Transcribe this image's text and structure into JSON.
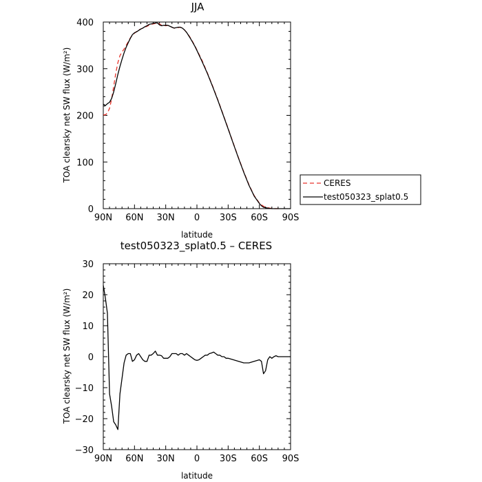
{
  "chart_data": [
    {
      "type": "line",
      "title": "JJA",
      "xlabel": "latitude",
      "ylabel": "TOA clearsky net SW flux (W/m²)",
      "xlim": [
        90,
        -90
      ],
      "ylim": [
        0,
        400
      ],
      "xticks": [
        90,
        60,
        30,
        0,
        -30,
        -60,
        -90
      ],
      "xtick_labels": [
        "90N",
        "60N",
        "30N",
        "0",
        "30S",
        "60S",
        "90S"
      ],
      "yticks": [
        0,
        100,
        200,
        300,
        400
      ],
      "ytick_labels": [
        "0",
        "100",
        "200",
        "300",
        "400"
      ],
      "legend": {
        "placement": "right"
      },
      "series": [
        {
          "name": "CERES",
          "color": "#e8332a",
          "dash": "dashed",
          "x": [
            90,
            88,
            86,
            84,
            82,
            80,
            78,
            76,
            74,
            72,
            70,
            68,
            66,
            64,
            62,
            60,
            58,
            56,
            54,
            52,
            50,
            48,
            46,
            44,
            42,
            40,
            38,
            36,
            34,
            32,
            30,
            28,
            26,
            24,
            22,
            20,
            18,
            16,
            14,
            12,
            10,
            8,
            6,
            4,
            2,
            0,
            -5,
            -10,
            -15,
            -20,
            -25,
            -30,
            -35,
            -40,
            -45,
            -50,
            -55,
            -60,
            -62,
            -64,
            -66,
            -68,
            -70,
            -72,
            -74,
            -76,
            -78,
            -80
          ],
          "y": [
            201,
            201,
            205,
            215,
            235,
            262,
            290,
            313,
            328,
            336,
            342,
            350,
            358,
            366,
            372,
            376,
            380,
            383,
            385,
            387,
            389,
            391,
            393,
            395,
            396,
            397,
            398,
            396,
            393,
            392,
            392,
            393,
            391,
            389,
            387,
            387,
            388,
            389,
            387,
            383,
            378,
            372,
            365,
            357,
            349,
            340,
            317,
            291,
            263,
            234,
            203,
            172,
            140,
            109,
            79,
            51,
            28,
            12,
            8,
            5,
            3,
            2,
            1,
            0.5,
            0,
            0,
            0,
            0
          ]
        },
        {
          "name": "test050323_splat0.5",
          "color": "#000000",
          "dash": "solid",
          "x": [
            90,
            88,
            86,
            84,
            82,
            80,
            78,
            76,
            74,
            72,
            70,
            68,
            66,
            64,
            62,
            60,
            58,
            56,
            54,
            52,
            50,
            48,
            46,
            44,
            42,
            40,
            38,
            36,
            34,
            32,
            30,
            28,
            26,
            24,
            22,
            20,
            18,
            16,
            14,
            12,
            10,
            8,
            6,
            4,
            2,
            0,
            -5,
            -10,
            -15,
            -20,
            -25,
            -30,
            -35,
            -40,
            -45,
            -50,
            -55,
            -60,
            -62,
            -64,
            -66,
            -68,
            -70,
            -72,
            -74,
            -76,
            -78,
            -80,
            -90
          ],
          "y": [
            224,
            221,
            225,
            228,
            236,
            250,
            268,
            288,
            305,
            320,
            334,
            346,
            356,
            365,
            373,
            377,
            379,
            382,
            385,
            387,
            390,
            392,
            395,
            396,
            397,
            398,
            398,
            394,
            392,
            393,
            393,
            393,
            391,
            389,
            387,
            388,
            389,
            389,
            387,
            383,
            378,
            371,
            364,
            356,
            348,
            339,
            315,
            290,
            262,
            233,
            202,
            171,
            139,
            108,
            78,
            50,
            27,
            11,
            6,
            3,
            2,
            1,
            0.5,
            0,
            0,
            0,
            0,
            0,
            0
          ]
        }
      ]
    },
    {
      "type": "line",
      "title": "test050323_splat0.5 – CERES",
      "xlabel": "latitude",
      "ylabel": "TOA clearsky net SW flux (W/m²)",
      "xlim": [
        90,
        -90
      ],
      "ylim": [
        -30,
        30
      ],
      "xticks": [
        90,
        60,
        30,
        0,
        -30,
        -60,
        -90
      ],
      "xtick_labels": [
        "90N",
        "60N",
        "30N",
        "0",
        "30S",
        "60S",
        "90S"
      ],
      "yticks": [
        -30,
        -20,
        -10,
        0,
        10,
        20,
        30
      ],
      "ytick_labels": [
        "−30",
        "−20",
        "−10",
        "0",
        "10",
        "20",
        "30"
      ],
      "series": [
        {
          "color": "#000000",
          "dash": "solid",
          "x": [
            90,
            88,
            86,
            84,
            82,
            80,
            78,
            76,
            74,
            72,
            70,
            68,
            66,
            64,
            62,
            60,
            58,
            56,
            54,
            52,
            50,
            48,
            46,
            44,
            42,
            40,
            38,
            36,
            34,
            32,
            30,
            28,
            26,
            24,
            22,
            20,
            18,
            16,
            14,
            12,
            10,
            8,
            6,
            4,
            2,
            0,
            -2,
            -4,
            -6,
            -8,
            -10,
            -12,
            -14,
            -16,
            -18,
            -20,
            -22,
            -24,
            -26,
            -28,
            -30,
            -35,
            -40,
            -45,
            -50,
            -55,
            -60,
            -62,
            -64,
            -66,
            -68,
            -70,
            -72,
            -74,
            -76,
            -78,
            -80,
            -85,
            -90
          ],
          "y": [
            23,
            19,
            14,
            -12,
            -16,
            -21,
            -22,
            -23.5,
            -12,
            -7,
            -2,
            0.5,
            1,
            1,
            -1.5,
            -1,
            0.5,
            1,
            0,
            -1,
            -1.5,
            -1.5,
            0.5,
            0.5,
            1,
            1.8,
            0.5,
            0.5,
            0.3,
            -0.5,
            -0.5,
            -0.5,
            0,
            1,
            1,
            1,
            0.5,
            1,
            1,
            0.5,
            1,
            0.5,
            0,
            -0.5,
            -1,
            -1.2,
            -1,
            -0.5,
            0,
            0.5,
            0.5,
            1,
            1.2,
            1.5,
            1,
            0.5,
            0.5,
            0,
            0,
            -0.5,
            -0.5,
            -1,
            -1.5,
            -2,
            -2,
            -1.5,
            -1,
            -1.5,
            -5.5,
            -4.5,
            -1,
            0,
            -0.5,
            0,
            0.3,
            0,
            0,
            0,
            0
          ]
        }
      ]
    }
  ]
}
